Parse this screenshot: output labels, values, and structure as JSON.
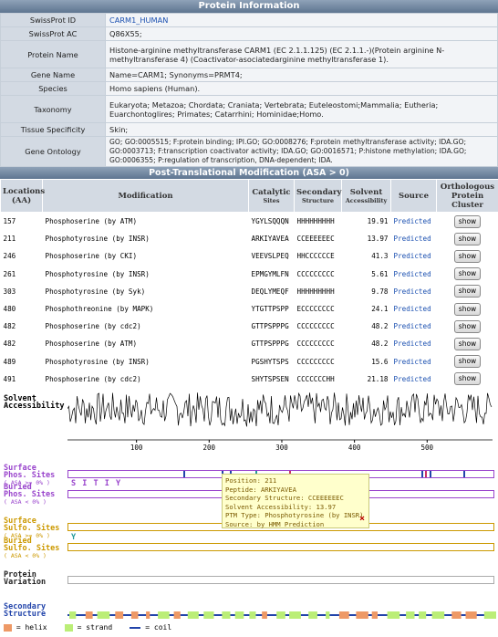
{
  "protein_info": {
    "title": "Protein Information",
    "rows": [
      {
        "label": "SwissProt ID",
        "value": "CARM1_HUMAN"
      },
      {
        "label": "SwissProt AC",
        "value": "Q86X55;"
      },
      {
        "label": "Protein Name",
        "value": "Histone-arginine methyltransferase CARM1 (EC 2.1.1.125) (EC 2.1.1.-)(Protein arginine N-methyltransferase 4) (Coactivator-asociatedarginine methyltransferase 1)."
      },
      {
        "label": "Gene Name",
        "value": "Name=CARM1; Synonyms=PRMT4;"
      },
      {
        "label": "Species",
        "value": "Homo sapiens (Human)."
      },
      {
        "label": "Taxonomy",
        "value": "Eukaryota; Metazoa; Chordata; Craniata; Vertebrata; Euteleostomi;Mammalia; Eutheria; Euarchontoglires; Primates; Catarrhini; Hominidae;Homo."
      },
      {
        "label": "Tissue Specificity",
        "value": "Skin;"
      },
      {
        "label": "Gene Ontology",
        "value": "GO; GO:0005515; F:protein binding; IPI.GO; GO:0008276; F:protein methyltransferase activity; IDA.GO; GO:0003713; F:transcription coactivator activity; IDA.GO; GO:0016571; P:histone methylation; IDA.GO; GO:0006355; P:regulation of transcription, DNA-dependent; IDA."
      }
    ]
  },
  "ptm": {
    "title": "Post-Translational Modification (ASA > 0)",
    "headers": {
      "location": "Locations (AA)",
      "modification": "Modification",
      "catalytic": "Catalytic",
      "catalytic_sub": "Sites",
      "secondary": "Secondary",
      "secondary_sub": "Structure",
      "solvent": "Solvent",
      "solvent_sub": "Accessibility",
      "source": "Source",
      "ortho": "Orthologous Protein Cluster"
    },
    "show_label": "show",
    "rows": [
      {
        "loc": "157",
        "mod": "Phosphoserine (by ATM)",
        "site": "YGYLSQQQN",
        "ss": "HHHHHHHHH",
        "asa": "19.91",
        "src": "Predicted"
      },
      {
        "loc": "211",
        "mod": "Phosphotyrosine (by INSR)",
        "site": "ARKIYAVEA",
        "ss": "CCEEEEEEC",
        "asa": "13.97",
        "src": "Predicted"
      },
      {
        "loc": "246",
        "mod": "Phosphoserine (by CKI)",
        "site": "VEEVSLPEQ",
        "ss": "HHCCCCCCE",
        "asa": "41.3",
        "src": "Predicted"
      },
      {
        "loc": "261",
        "mod": "Phosphotyrosine (by INSR)",
        "site": "EPMGYMLFN",
        "ss": "CCCCCCCCC",
        "asa": "5.61",
        "src": "Predicted"
      },
      {
        "loc": "303",
        "mod": "Phosphotyrosine (by Syk)",
        "site": "DEQLYMEQF",
        "ss": "HHHHHHHHH",
        "asa": "9.78",
        "src": "Predicted"
      },
      {
        "loc": "480",
        "mod": "Phosphothreonine (by MAPK)",
        "site": "YTGTTPSPP",
        "ss": "ECCCCCCCC",
        "asa": "24.1",
        "src": "Predicted"
      },
      {
        "loc": "482",
        "mod": "Phosphoserine (by cdc2)",
        "site": "GTTPSPPPG",
        "ss": "CCCCCCCCC",
        "asa": "48.2",
        "src": "Predicted"
      },
      {
        "loc": "482",
        "mod": "Phosphoserine (by ATM)",
        "site": "GTTPSPPPG",
        "ss": "CCCCCCCCC",
        "asa": "48.2",
        "src": "Predicted"
      },
      {
        "loc": "489",
        "mod": "Phosphotyrosine (by INSR)",
        "site": "PGSHYTSPS",
        "ss": "CCCCCCCCC",
        "asa": "15.6",
        "src": "Predicted"
      },
      {
        "loc": "491",
        "mod": "Phosphoserine (by cdc2)",
        "site": "SHYTSPSEN",
        "ss": "CCCCCCCHH",
        "asa": "21.18",
        "src": "Predicted"
      }
    ]
  },
  "tracks": {
    "solvent_label_1": "Solvent",
    "solvent_label_2": "Accessibility",
    "axis_ticks": [
      "100",
      "200",
      "300",
      "400",
      "500"
    ],
    "surface": "Surface",
    "phos_sites": "Phos. Sites",
    "asa_ge": "( ASA >= 0% )",
    "buried": "Buried",
    "asa_lt": "( ASA < 0% )",
    "phos_residues": "S  I  T  I  Y",
    "sulfo_sites": "Sulfo. Sites",
    "sulfo_residues": "Y",
    "protein": "Protein",
    "variation": "Variation",
    "secondary": "Secondary",
    "structure": "Structure",
    "legend_helix": "= helix",
    "legend_strand": "= strand",
    "legend_coil": "= coil",
    "colors": {
      "helix": "#ee9966",
      "strand": "#bbee77",
      "coil": "#2244aa",
      "phos": "#9944cc",
      "sulfo": "#cc9900"
    }
  },
  "tooltip": {
    "position": "Position: 211",
    "peptide": "Peptide: ARKIYAVEA",
    "secondary": "Secondary Structure: CCEEEEEEC",
    "solvent": "Solvent Accessibility: 13.97",
    "ptm_type": "PTM Type: Phosphotyrosine (by INSR)",
    "source": "Source: by HMM Prediction",
    "close": "×"
  }
}
